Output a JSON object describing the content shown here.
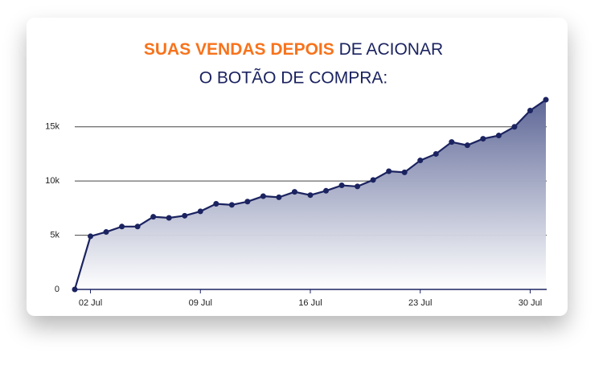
{
  "chart_data": {
    "type": "area",
    "title": [
      "SUAS VENDAS DEPOIS",
      " DE ACIONAR",
      "O BOTÃO DE COMPRA:"
    ],
    "x": [
      "01 Jul",
      "02 Jul",
      "03 Jul",
      "04 Jul",
      "05 Jul",
      "06 Jul",
      "07 Jul",
      "08 Jul",
      "09 Jul",
      "10 Jul",
      "11 Jul",
      "12 Jul",
      "13 Jul",
      "14 Jul",
      "15 Jul",
      "16 Jul",
      "17 Jul",
      "18 Jul",
      "19 Jul",
      "20 Jul",
      "21 Jul",
      "22 Jul",
      "23 Jul",
      "24 Jul",
      "25 Jul",
      "26 Jul",
      "27 Jul",
      "28 Jul",
      "29 Jul",
      "30 Jul",
      "31 Jul"
    ],
    "values": [
      0,
      4900,
      5300,
      5800,
      5800,
      6700,
      6600,
      6800,
      7200,
      7900,
      7800,
      8100,
      8600,
      8500,
      9000,
      8700,
      9100,
      9600,
      9500,
      10100,
      10900,
      10800,
      11900,
      12500,
      13600,
      13300,
      13900,
      14200,
      15000,
      16500,
      17500
    ],
    "color": "#1b2360",
    "xticks": [
      "02 Jul",
      "09 Jul",
      "16 Jul",
      "23 Jul",
      "30 Jul"
    ],
    "ylim": [
      0,
      17800
    ],
    "yticks": [
      0,
      {
        "value": 5000,
        "label": "5k"
      },
      {
        "value": 10000,
        "label": "10k"
      },
      {
        "value": 15000,
        "label": "15k"
      }
    ],
    "grid": true
  }
}
